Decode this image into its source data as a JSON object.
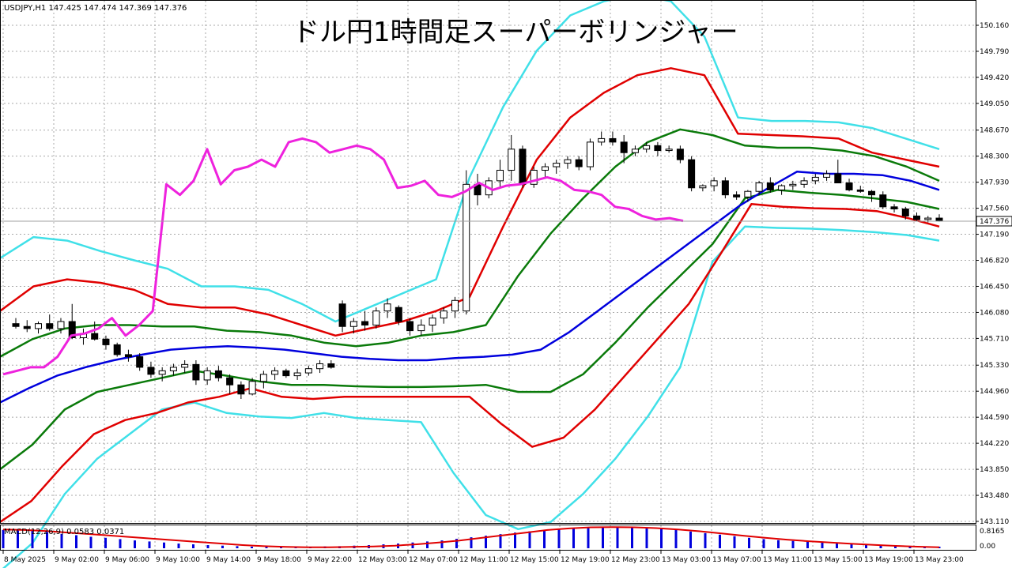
{
  "symbol_info": "USDJPY,H1  147.425 147.474 147.369 147.376",
  "title": "ドル円1時間足スーパーボリンジャー",
  "macd_label": "MACD(12,26,9) 0.0583 0.0371",
  "macd_axis": [
    "0.8165",
    "0.00"
  ],
  "current_price_label": "147.376",
  "colors": {
    "sma": "#0000dd",
    "band1": "#0a7a0a",
    "band2": "#e00000",
    "band3": "#40e0e8",
    "chikou": "#ee22dd",
    "macd_hist": "#0000dd",
    "macd_signal": "#e00000",
    "grid": "#a8a8a8"
  },
  "chart_data": {
    "type": "candlestick",
    "title": "ドル円1時間足スーパーボリンジャー",
    "ylim": [
      143.11,
      150.16
    ],
    "price_ticks": [
      "150.160",
      "149.790",
      "149.420",
      "149.050",
      "148.670",
      "148.300",
      "147.930",
      "147.560",
      "147.190",
      "146.820",
      "146.450",
      "146.080",
      "145.710",
      "145.330",
      "144.960",
      "144.590",
      "144.220",
      "143.850",
      "143.480",
      "143.110"
    ],
    "price_tick_values": [
      150.16,
      149.79,
      149.42,
      149.05,
      148.67,
      148.3,
      147.93,
      147.56,
      147.19,
      146.82,
      146.45,
      146.08,
      145.71,
      145.33,
      144.96,
      144.59,
      144.22,
      143.85,
      143.48,
      143.11
    ],
    "time_labels": [
      "8 May 2025",
      "9 May 02:00",
      "9 May 06:00",
      "9 May 10:00",
      "9 May 14:00",
      "9 May 18:00",
      "9 May 22:00",
      "12 May 03:00",
      "12 May 07:00",
      "12 May 11:00",
      "12 May 15:00",
      "12 May 19:00",
      "12 May 23:00",
      "13 May 03:00",
      "13 May 07:00",
      "13 May 11:00",
      "13 May 15:00",
      "13 May 19:00",
      "13 May 23:00"
    ],
    "ohlc": [
      [
        145.92,
        146.0,
        145.85,
        145.88
      ],
      [
        145.88,
        145.97,
        145.8,
        145.85
      ],
      [
        145.85,
        145.95,
        145.78,
        145.92
      ],
      [
        145.92,
        146.05,
        145.82,
        145.85
      ],
      [
        145.85,
        146.0,
        145.78,
        145.95
      ],
      [
        145.95,
        146.2,
        145.7,
        145.72
      ],
      [
        145.72,
        145.85,
        145.62,
        145.78
      ],
      [
        145.78,
        145.95,
        145.68,
        145.7
      ],
      [
        145.7,
        145.75,
        145.55,
        145.62
      ],
      [
        145.62,
        145.65,
        145.45,
        145.48
      ],
      [
        145.48,
        145.55,
        145.38,
        145.45
      ],
      [
        145.45,
        145.5,
        145.25,
        145.3
      ],
      [
        145.3,
        145.38,
        145.15,
        145.2
      ],
      [
        145.2,
        145.3,
        145.1,
        145.25
      ],
      [
        145.25,
        145.35,
        145.18,
        145.3
      ],
      [
        145.3,
        145.4,
        145.22,
        145.34
      ],
      [
        145.34,
        145.4,
        145.05,
        145.12
      ],
      [
        145.12,
        145.3,
        145.05,
        145.25
      ],
      [
        145.25,
        145.32,
        145.1,
        145.15
      ],
      [
        145.15,
        145.2,
        144.92,
        145.05
      ],
      [
        145.05,
        145.1,
        144.85,
        144.92
      ],
      [
        144.92,
        145.15,
        144.9,
        145.1
      ],
      [
        145.1,
        145.25,
        145.0,
        145.2
      ],
      [
        145.2,
        145.3,
        145.12,
        145.25
      ],
      [
        145.25,
        145.28,
        145.15,
        145.18
      ],
      [
        145.18,
        145.28,
        145.12,
        145.22
      ],
      [
        145.22,
        145.32,
        145.18,
        145.28
      ],
      [
        145.28,
        145.4,
        145.22,
        145.35
      ],
      [
        145.35,
        145.4,
        145.28,
        145.3
      ],
      [
        146.2,
        146.25,
        145.8,
        145.88
      ],
      [
        145.88,
        146.0,
        145.78,
        145.95
      ],
      [
        145.95,
        146.1,
        145.82,
        145.9
      ],
      [
        145.9,
        146.15,
        145.85,
        146.1
      ],
      [
        146.1,
        146.28,
        146.0,
        146.2
      ],
      [
        146.15,
        146.18,
        145.9,
        145.95
      ],
      [
        145.95,
        146.0,
        145.75,
        145.82
      ],
      [
        145.82,
        145.98,
        145.75,
        145.9
      ],
      [
        145.9,
        146.05,
        145.8,
        146.0
      ],
      [
        146.0,
        146.15,
        145.92,
        146.1
      ],
      [
        146.1,
        146.3,
        146.0,
        146.25
      ],
      [
        146.1,
        148.1,
        146.05,
        147.9
      ],
      [
        147.9,
        148.05,
        147.6,
        147.75
      ],
      [
        147.75,
        148.0,
        147.7,
        147.95
      ],
      [
        147.95,
        148.25,
        147.85,
        148.1
      ],
      [
        148.1,
        148.6,
        147.95,
        148.4
      ],
      [
        148.4,
        148.45,
        147.85,
        147.9
      ],
      [
        147.9,
        148.15,
        147.85,
        148.1
      ],
      [
        148.1,
        148.2,
        148.0,
        148.15
      ],
      [
        148.15,
        148.25,
        148.05,
        148.2
      ],
      [
        148.2,
        148.3,
        148.12,
        148.25
      ],
      [
        148.25,
        148.3,
        148.1,
        148.15
      ],
      [
        148.15,
        148.55,
        148.1,
        148.5
      ],
      [
        148.5,
        148.65,
        148.45,
        148.55
      ],
      [
        148.55,
        148.65,
        148.45,
        148.5
      ],
      [
        148.5,
        148.6,
        148.2,
        148.35
      ],
      [
        148.35,
        148.45,
        148.3,
        148.4
      ],
      [
        148.4,
        148.5,
        148.35,
        148.45
      ],
      [
        148.45,
        148.5,
        148.3,
        148.38
      ],
      [
        148.38,
        148.45,
        148.35,
        148.4
      ],
      [
        148.4,
        148.45,
        148.2,
        148.25
      ],
      [
        148.25,
        148.3,
        147.8,
        147.85
      ],
      [
        147.85,
        147.9,
        147.8,
        147.88
      ],
      [
        147.88,
        148.0,
        147.8,
        147.95
      ],
      [
        147.95,
        148.0,
        147.7,
        147.75
      ],
      [
        147.75,
        147.8,
        147.68,
        147.72
      ],
      [
        147.72,
        147.82,
        147.65,
        147.8
      ],
      [
        147.8,
        147.95,
        147.75,
        147.92
      ],
      [
        147.92,
        148.0,
        147.78,
        147.82
      ],
      [
        147.82,
        147.9,
        147.75,
        147.88
      ],
      [
        147.88,
        147.95,
        147.82,
        147.9
      ],
      [
        147.9,
        148.0,
        147.85,
        147.95
      ],
      [
        147.95,
        148.05,
        147.9,
        148.0
      ],
      [
        148.0,
        148.1,
        147.95,
        148.05
      ],
      [
        148.05,
        148.25,
        147.95,
        147.92
      ],
      [
        147.92,
        147.98,
        147.8,
        147.82
      ],
      [
        147.82,
        147.88,
        147.78,
        147.8
      ],
      [
        147.8,
        147.82,
        147.65,
        147.75
      ],
      [
        147.75,
        147.8,
        147.55,
        147.58
      ],
      [
        147.58,
        147.62,
        147.5,
        147.55
      ],
      [
        147.55,
        147.58,
        147.4,
        147.45
      ],
      [
        147.45,
        147.5,
        147.38,
        147.4
      ],
      [
        147.4,
        147.45,
        147.36,
        147.42
      ],
      [
        147.42,
        147.474,
        147.369,
        147.376
      ]
    ],
    "sma": [
      144.8,
      145.0,
      145.18,
      145.3,
      145.4,
      145.48,
      145.55,
      145.58,
      145.6,
      145.58,
      145.55,
      145.5,
      145.45,
      145.42,
      145.4,
      145.4,
      145.43,
      145.45,
      145.48,
      145.55,
      145.8,
      146.1,
      146.4,
      146.7,
      147.0,
      147.3,
      147.6,
      147.85,
      148.08,
      148.05,
      148.05,
      148.03,
      147.95,
      147.82
    ],
    "upper1": [
      145.45,
      145.7,
      145.85,
      145.9,
      145.9,
      145.88,
      145.88,
      145.82,
      145.8,
      145.75,
      145.65,
      145.6,
      145.65,
      145.75,
      145.8,
      145.9,
      146.6,
      147.2,
      147.7,
      148.15,
      148.5,
      148.68,
      148.6,
      148.45,
      148.42,
      148.42,
      148.38,
      148.3,
      148.15,
      147.95
    ],
    "lower1": [
      143.85,
      144.2,
      144.7,
      144.95,
      145.05,
      145.15,
      145.25,
      145.18,
      145.1,
      145.05,
      145.05,
      145.03,
      145.02,
      145.02,
      145.03,
      145.05,
      144.95,
      144.95,
      145.2,
      145.65,
      146.15,
      146.6,
      147.05,
      147.7,
      147.82,
      147.78,
      147.75,
      147.7,
      147.65,
      147.55
    ],
    "upper2": [
      146.1,
      146.45,
      146.55,
      146.5,
      146.4,
      146.2,
      146.15,
      146.15,
      146.05,
      145.9,
      145.75,
      145.85,
      145.95,
      146.1,
      146.3,
      147.3,
      148.25,
      148.85,
      149.2,
      149.45,
      149.55,
      149.45,
      148.62,
      148.6,
      148.58,
      148.55,
      148.35,
      148.25,
      148.15
    ],
    "lower2": [
      143.1,
      143.4,
      143.9,
      144.35,
      144.55,
      144.65,
      144.8,
      144.88,
      145.0,
      144.88,
      144.85,
      144.88,
      144.88,
      144.88,
      144.88,
      144.88,
      144.5,
      144.17,
      144.3,
      144.7,
      145.2,
      145.7,
      146.2,
      146.9,
      147.62,
      147.58,
      147.56,
      147.55,
      147.52,
      147.42,
      147.3
    ],
    "upper3": [
      146.85,
      147.15,
      147.1,
      146.95,
      146.82,
      146.7,
      146.45,
      146.45,
      146.4,
      146.2,
      145.95,
      146.15,
      146.35,
      146.55,
      148.0,
      149.0,
      149.8,
      150.3,
      150.5,
      150.6,
      150.5,
      150.0,
      148.85,
      148.8,
      148.8,
      148.78,
      148.7,
      148.55,
      148.4
    ],
    "lower3": [
      142.4,
      142.8,
      143.5,
      144.0,
      144.35,
      144.7,
      144.8,
      144.65,
      144.6,
      144.58,
      144.65,
      144.58,
      144.55,
      144.52,
      143.8,
      143.2,
      143.0,
      143.1,
      143.5,
      144.0,
      144.6,
      145.3,
      146.8,
      147.3,
      147.28,
      147.27,
      147.25,
      147.22,
      147.18,
      147.1
    ],
    "chikou": [
      145.2,
      145.25,
      145.3,
      145.3,
      145.45,
      145.75,
      145.78,
      145.85,
      146.0,
      145.75,
      145.9,
      146.1,
      147.9,
      147.75,
      147.95,
      148.4,
      147.9,
      148.1,
      148.15,
      148.25,
      148.15,
      148.5,
      148.55,
      148.5,
      148.35,
      148.4,
      148.45,
      148.4,
      148.25,
      147.85,
      147.88,
      147.95,
      147.75,
      147.72,
      147.8,
      147.92,
      147.82,
      147.88,
      147.9,
      147.95,
      148.0,
      147.95,
      147.82,
      147.8,
      147.75,
      147.58,
      147.55,
      147.45,
      147.4,
      147.42,
      147.38
    ],
    "macd_hist": [
      0.7,
      0.72,
      0.68,
      0.62,
      0.55,
      0.5,
      0.44,
      0.4,
      0.35,
      0.3,
      0.26,
      0.22,
      0.18,
      0.15,
      0.12,
      0.1,
      0.08,
      0.06,
      0.05,
      0.05,
      0.05,
      0.06,
      0.07,
      0.08,
      0.1,
      0.12,
      0.15,
      0.18,
      0.22,
      0.26,
      0.3,
      0.36,
      0.42,
      0.48,
      0.54,
      0.6,
      0.65,
      0.7,
      0.74,
      0.78,
      0.8,
      0.81,
      0.81,
      0.8,
      0.78,
      0.74,
      0.7,
      0.64,
      0.58,
      0.52,
      0.46,
      0.4,
      0.35,
      0.31,
      0.28,
      0.25,
      0.22,
      0.2,
      0.17,
      0.15,
      0.13,
      0.11,
      0.09,
      0.07,
      0.06
    ],
    "macd_signal": [
      0.72,
      0.7,
      0.66,
      0.6,
      0.54,
      0.48,
      0.42,
      0.36,
      0.3,
      0.24,
      0.18,
      0.12,
      0.08,
      0.05,
      0.04,
      0.04,
      0.05,
      0.07,
      0.1,
      0.15,
      0.22,
      0.3,
      0.4,
      0.5,
      0.6,
      0.7,
      0.76,
      0.8,
      0.81,
      0.8,
      0.77,
      0.72,
      0.65,
      0.57,
      0.48,
      0.4,
      0.33,
      0.27,
      0.22,
      0.17,
      0.13,
      0.09,
      0.06,
      0.04
    ]
  }
}
